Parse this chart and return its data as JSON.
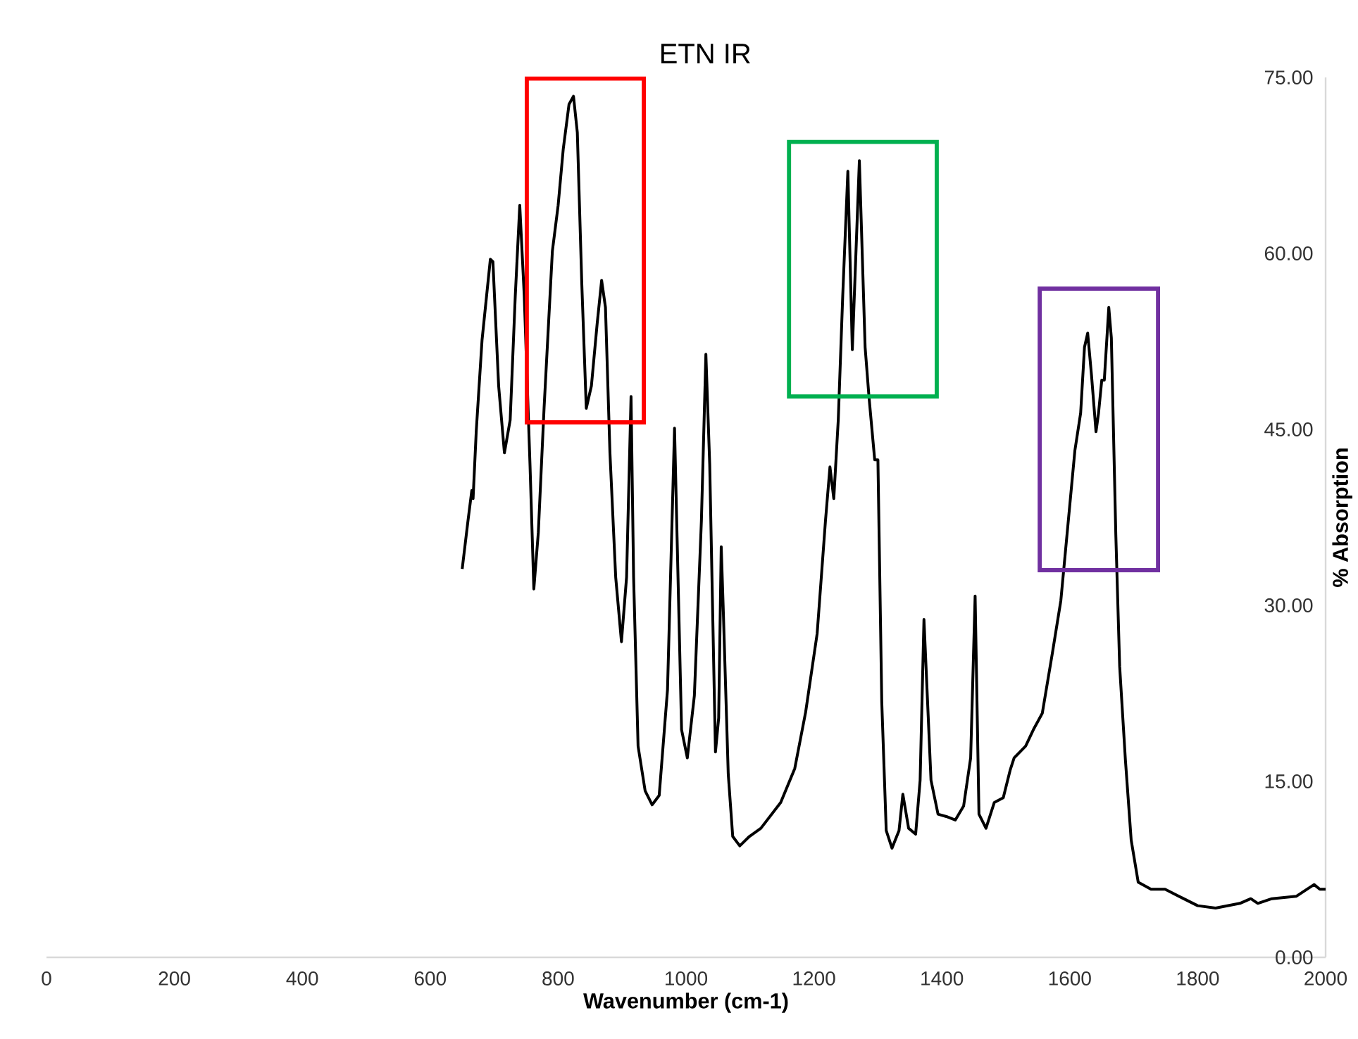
{
  "chart_data": {
    "type": "line",
    "title": "ETN IR",
    "xlabel": "Wavenumber (cm-1)",
    "ylabel": "% Absorption",
    "xlim": [
      0,
      2000
    ],
    "xticks": [
      0,
      200,
      400,
      600,
      800,
      1000,
      1200,
      1400,
      1600,
      1800,
      2000
    ],
    "ylim": [
      0,
      75
    ],
    "yticks": [
      {
        "value": 0,
        "label": "0.00"
      },
      {
        "value": 15,
        "label": "15.00"
      },
      {
        "value": 30,
        "label": "30.00"
      },
      {
        "value": 45,
        "label": "45.00"
      },
      {
        "value": 60,
        "label": "60.00"
      },
      {
        "value": 75,
        "label": "75.00"
      }
    ],
    "grid": false,
    "series": [
      {
        "color": "#000000",
        "x": [
          650,
          659,
          665,
          667,
          672,
          681,
          694,
          698,
          707,
          716,
          725,
          733,
          740,
          747,
          756,
          762,
          769,
          778,
          791,
          800,
          808,
          817,
          824,
          830,
          837,
          844,
          852,
          861,
          868,
          874,
          881,
          890,
          899,
          907,
          914,
          918,
          925,
          936,
          947,
          958,
          971,
          982,
          993,
          1002,
          1013,
          1024,
          1031,
          1037,
          1046,
          1051,
          1055,
          1058,
          1066,
          1073,
          1084,
          1099,
          1117,
          1148,
          1170,
          1187,
          1205,
          1218,
          1225,
          1231,
          1238,
          1245,
          1253,
          1260,
          1271,
          1280,
          1286,
          1295,
          1300,
          1306,
          1313,
          1322,
          1333,
          1339,
          1348,
          1359,
          1366,
          1372,
          1383,
          1394,
          1407,
          1421,
          1434,
          1445,
          1452,
          1458,
          1469,
          1482,
          1496,
          1507,
          1513,
          1531,
          1544,
          1557,
          1573,
          1586,
          1597,
          1608,
          1617,
          1623,
          1628,
          1634,
          1641,
          1645,
          1650,
          1654,
          1661,
          1665,
          1672,
          1678,
          1687,
          1696,
          1707,
          1727,
          1749,
          1778,
          1800,
          1828,
          1866,
          1883,
          1894,
          1916,
          1954,
          1982,
          1991,
          2000
        ],
        "values": [
          33.1,
          37.2,
          39.8,
          39.1,
          44.9,
          52.6,
          59.5,
          59.3,
          48.7,
          43.0,
          45.8,
          56.4,
          64.1,
          56.4,
          42.0,
          31.4,
          36.2,
          46.8,
          60.2,
          64.1,
          68.9,
          72.7,
          73.4,
          70.3,
          57.4,
          46.8,
          48.7,
          54.0,
          57.7,
          55.4,
          43.0,
          32.4,
          26.9,
          32.4,
          47.8,
          32.4,
          18.0,
          14.2,
          13.0,
          13.8,
          22.8,
          45.1,
          19.4,
          17.0,
          22.3,
          37.2,
          51.4,
          42.0,
          17.5,
          20.4,
          35.0,
          30.0,
          15.6,
          10.3,
          9.5,
          10.3,
          11.0,
          13.2,
          16.1,
          20.9,
          27.6,
          37.2,
          41.8,
          39.1,
          45.8,
          56.4,
          67.0,
          51.8,
          67.9,
          52.0,
          47.8,
          42.4,
          42.4,
          21.8,
          10.8,
          9.3,
          10.8,
          13.9,
          11.0,
          10.5,
          15.1,
          28.8,
          15.1,
          12.2,
          12.0,
          11.7,
          12.9,
          17.0,
          30.8,
          12.2,
          11.0,
          13.2,
          13.6,
          16.0,
          17.0,
          18.0,
          19.5,
          20.8,
          26.0,
          30.4,
          36.8,
          43.2,
          46.4,
          52.0,
          53.2,
          49.6,
          44.8,
          46.4,
          49.2,
          49.2,
          55.4,
          52.8,
          36.0,
          24.8,
          16.8,
          10.0,
          6.4,
          5.8,
          5.8,
          5.0,
          4.4,
          4.2,
          4.6,
          5.0,
          4.6,
          5.0,
          5.2,
          6.2,
          5.8,
          5.8
        ]
      }
    ]
  }
}
